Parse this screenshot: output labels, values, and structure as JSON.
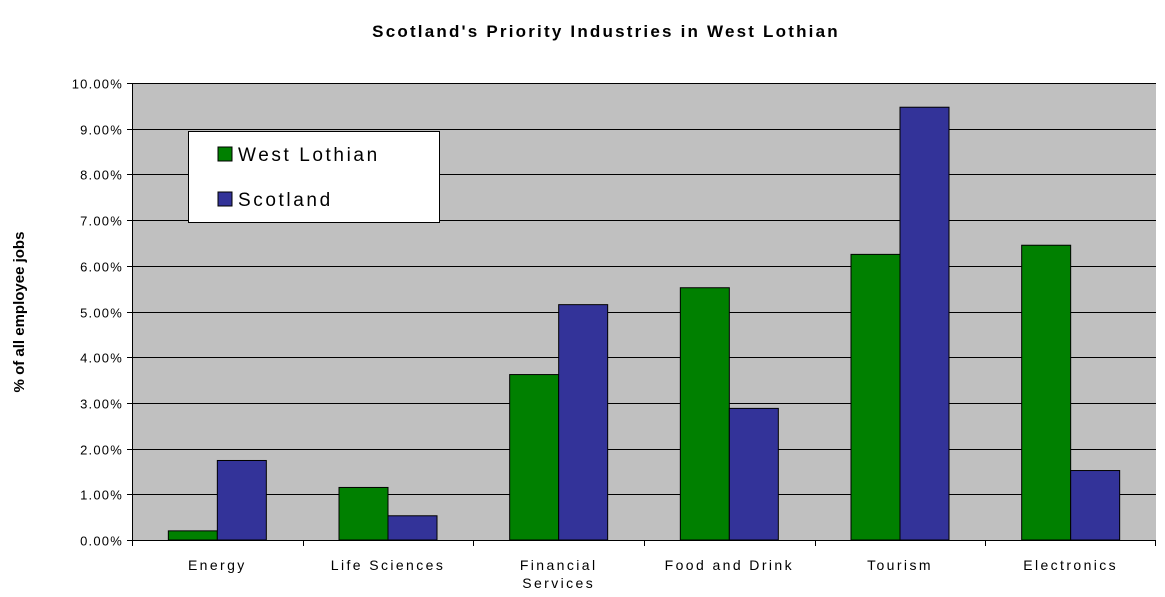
{
  "chart_data": {
    "type": "bar",
    "title": "Scotland's Priority Industries in West Lothian",
    "xlabel": "",
    "ylabel": "% of all employee jobs",
    "categories": [
      "Energy",
      "Life Sciences",
      "Financial Services",
      "Food and Drink",
      "Tourism",
      "Electronics"
    ],
    "series": [
      {
        "name": "West Lothian",
        "color": "#008000",
        "values": [
          0.2,
          1.15,
          3.62,
          5.52,
          6.25,
          6.45
        ]
      },
      {
        "name": "Scotland",
        "color": "#333399",
        "values": [
          1.74,
          0.53,
          5.15,
          2.88,
          9.47,
          1.52
        ]
      }
    ],
    "ylim": [
      0,
      10
    ],
    "yticks": [
      "0.00%",
      "1.00%",
      "2.00%",
      "3.00%",
      "4.00%",
      "5.00%",
      "6.00%",
      "7.00%",
      "8.00%",
      "9.00%",
      "10.00%"
    ],
    "grid": true,
    "legend_position": "top-left",
    "plot_background": "#c0c0c0"
  }
}
